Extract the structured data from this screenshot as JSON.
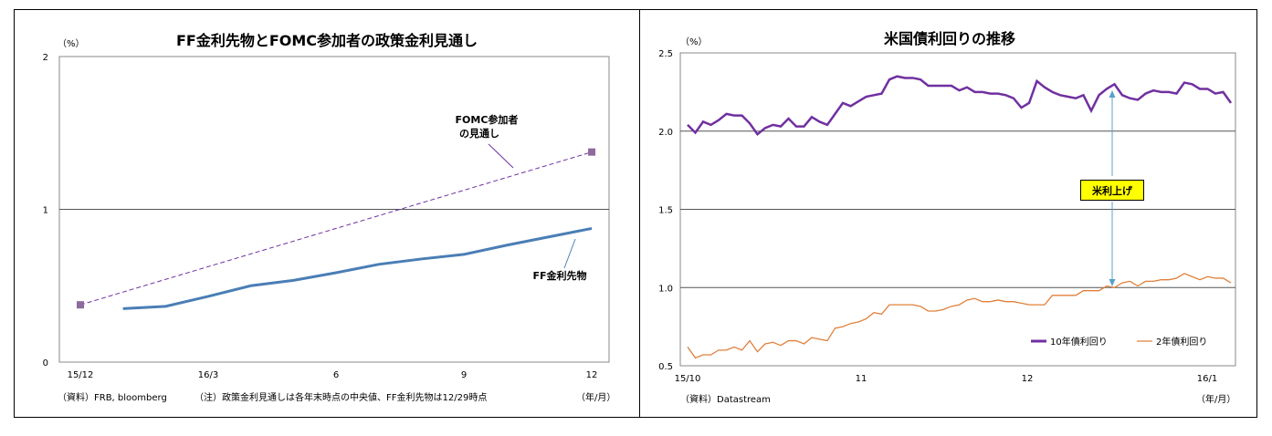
{
  "chart_data": [
    {
      "type": "line",
      "title": "FF金利先物とFOMC参加者の政策金利見通し",
      "y_unit": "（%）",
      "x_unit": "（年/月）",
      "ylim": [
        0,
        2
      ],
      "y_ticks": [
        "0",
        "1",
        "2"
      ],
      "x_ticks": [
        "15/12",
        "16/3",
        "6",
        "9",
        "12"
      ],
      "grid": true,
      "source": "（資料）FRB, bloomberg",
      "note": "（注）政策金利見通しは各年末時点の中央値、FF金利先物は12/29時点",
      "series": [
        {
          "name": "FOMC参加者の見通し",
          "label_lines": [
            "FOMC参加者",
            "の見通し"
          ],
          "style": "dashed",
          "color": "#7030a0",
          "marker_color": "#8e6a9e",
          "x": [
            "15/12",
            "16/12"
          ],
          "y": [
            0.375,
            1.375
          ]
        },
        {
          "name": "FF金利先物",
          "style": "solid",
          "color": "#4a7eb5",
          "x": [
            "16/1",
            "16/2",
            "16/3",
            "16/4",
            "16/5",
            "16/6",
            "16/7",
            "16/8",
            "16/9",
            "16/10",
            "16/11",
            "16/12"
          ],
          "y": [
            0.35,
            0.365,
            0.43,
            0.5,
            0.535,
            0.585,
            0.64,
            0.675,
            0.705,
            0.765,
            0.82,
            0.875
          ]
        }
      ]
    },
    {
      "type": "line",
      "title": "米国債利回りの推移",
      "y_unit": "（%）",
      "x_unit": "（年/月）",
      "ylim": [
        0.5,
        2.5
      ],
      "y_ticks": [
        "0.5",
        "1.0",
        "1.5",
        "2.0",
        "2.5"
      ],
      "x_ticks": [
        "15/10",
        "11",
        "12",
        "16/1"
      ],
      "grid": true,
      "legend_position": "bottom-right",
      "source": "（資料）Datastream",
      "annotation": "米利上げ",
      "series": [
        {
          "name": "10年債利回り",
          "color": "#7030a0",
          "values": [
            2.04,
            1.99,
            2.06,
            2.04,
            2.07,
            2.11,
            2.1,
            2.1,
            2.05,
            1.98,
            2.02,
            2.04,
            2.03,
            2.08,
            2.03,
            2.03,
            2.09,
            2.06,
            2.04,
            2.11,
            2.18,
            2.16,
            2.19,
            2.22,
            2.23,
            2.24,
            2.33,
            2.35,
            2.34,
            2.34,
            2.33,
            2.29,
            2.29,
            2.29,
            2.29,
            2.26,
            2.28,
            2.25,
            2.25,
            2.24,
            2.24,
            2.23,
            2.21,
            2.15,
            2.18,
            2.32,
            2.28,
            2.25,
            2.23,
            2.22,
            2.21,
            2.23,
            2.13,
            2.23,
            2.27,
            2.3,
            2.23,
            2.21,
            2.2,
            2.24,
            2.26,
            2.25,
            2.25,
            2.24,
            2.31,
            2.3,
            2.27,
            2.27,
            2.24,
            2.25,
            2.18
          ]
        },
        {
          "name": "2年債利回り",
          "color": "#e0803a",
          "values": [
            0.62,
            0.55,
            0.57,
            0.57,
            0.6,
            0.6,
            0.62,
            0.6,
            0.66,
            0.59,
            0.64,
            0.65,
            0.63,
            0.66,
            0.66,
            0.64,
            0.68,
            0.67,
            0.66,
            0.74,
            0.75,
            0.77,
            0.78,
            0.8,
            0.84,
            0.83,
            0.89,
            0.89,
            0.89,
            0.89,
            0.88,
            0.85,
            0.85,
            0.86,
            0.88,
            0.89,
            0.92,
            0.93,
            0.91,
            0.91,
            0.92,
            0.91,
            0.91,
            0.9,
            0.89,
            0.89,
            0.89,
            0.95,
            0.95,
            0.95,
            0.95,
            0.98,
            0.98,
            0.98,
            1.01,
            1.0,
            1.03,
            1.04,
            1.01,
            1.04,
            1.04,
            1.05,
            1.05,
            1.06,
            1.09,
            1.07,
            1.05,
            1.07,
            1.06,
            1.06,
            1.03
          ]
        }
      ]
    }
  ]
}
